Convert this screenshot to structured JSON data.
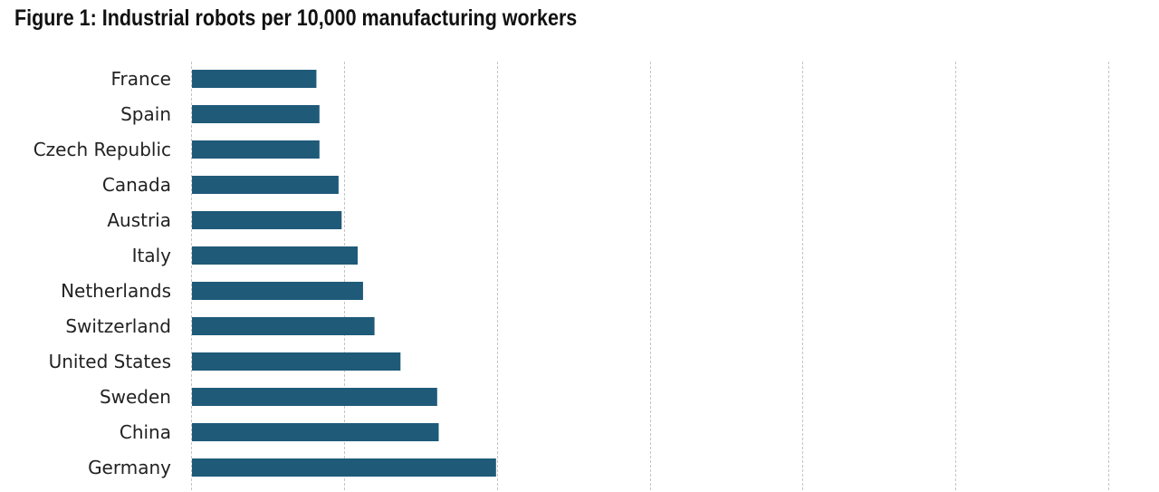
{
  "chart_data": {
    "type": "bar",
    "orientation": "horizontal",
    "title": "Figure 1: Industrial robots per 10,000 manufacturing workers",
    "categories": [
      "France",
      "Spain",
      "Czech Republic",
      "Canada",
      "Austria",
      "Italy",
      "Netherlands",
      "Switzerland",
      "United States",
      "Sweden",
      "China",
      "Germany"
    ],
    "values": [
      164,
      168,
      168,
      193,
      197,
      218,
      225,
      240,
      274,
      322,
      324,
      399
    ],
    "xlim": [
      0,
      1200
    ],
    "grid": true,
    "xlabel": "",
    "ylabel": "",
    "bar_color": "#1f5a79",
    "grid_color": "#c4c4c4"
  }
}
